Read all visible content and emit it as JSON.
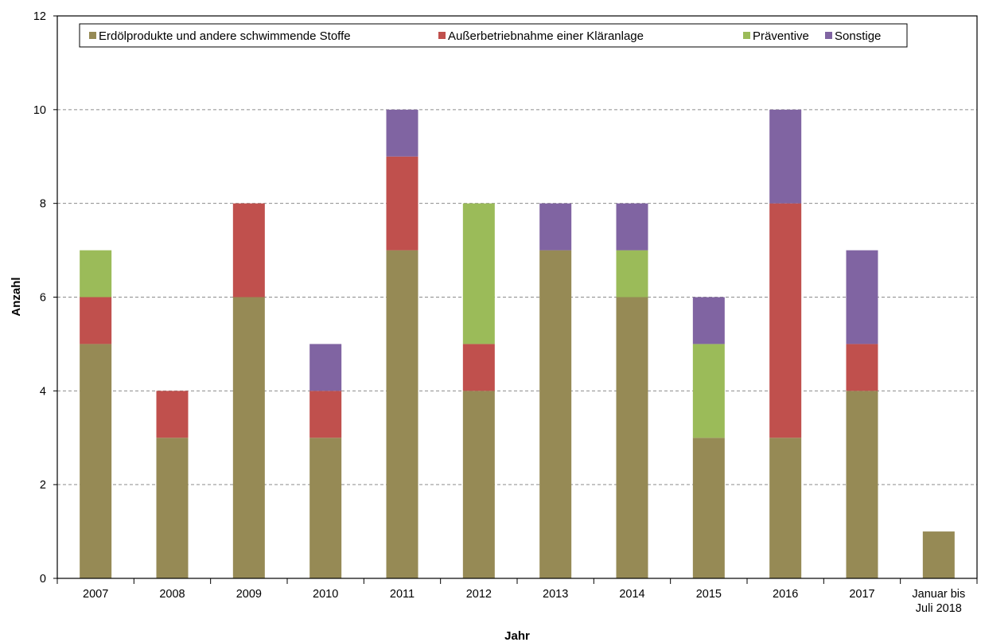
{
  "chart_data": {
    "type": "bar",
    "stacked": true,
    "categories": [
      "2007",
      "2008",
      "2009",
      "2010",
      "2011",
      "2012",
      "2013",
      "2014",
      "2015",
      "2016",
      "2017",
      "Januar bis Juli 2018"
    ],
    "series": [
      {
        "name": "Erdölprodukte und andere schwimmende Stoffe",
        "color": "#968a55",
        "values": [
          5,
          3,
          6,
          3,
          7,
          4,
          7,
          6,
          3,
          3,
          4,
          1
        ]
      },
      {
        "name": "Außerbetriebnahme einer Kläranlage",
        "color": "#c0504d",
        "values": [
          1,
          1,
          2,
          1,
          2,
          1,
          0,
          0,
          0,
          5,
          1,
          0
        ]
      },
      {
        "name": "Präventive",
        "color": "#9bbb59",
        "values": [
          1,
          0,
          0,
          0,
          0,
          3,
          0,
          1,
          2,
          0,
          0,
          0
        ]
      },
      {
        "name": "Sonstige",
        "color": "#8064a2",
        "values": [
          0,
          0,
          0,
          1,
          1,
          0,
          1,
          1,
          1,
          2,
          2,
          0
        ]
      }
    ],
    "xlabel": "Jahr",
    "ylabel": "Anzahl",
    "ylim": [
      0,
      12
    ],
    "yticks": [
      0,
      2,
      4,
      6,
      8,
      10,
      12
    ],
    "grid": "horizontal dashed",
    "legend": "top"
  }
}
